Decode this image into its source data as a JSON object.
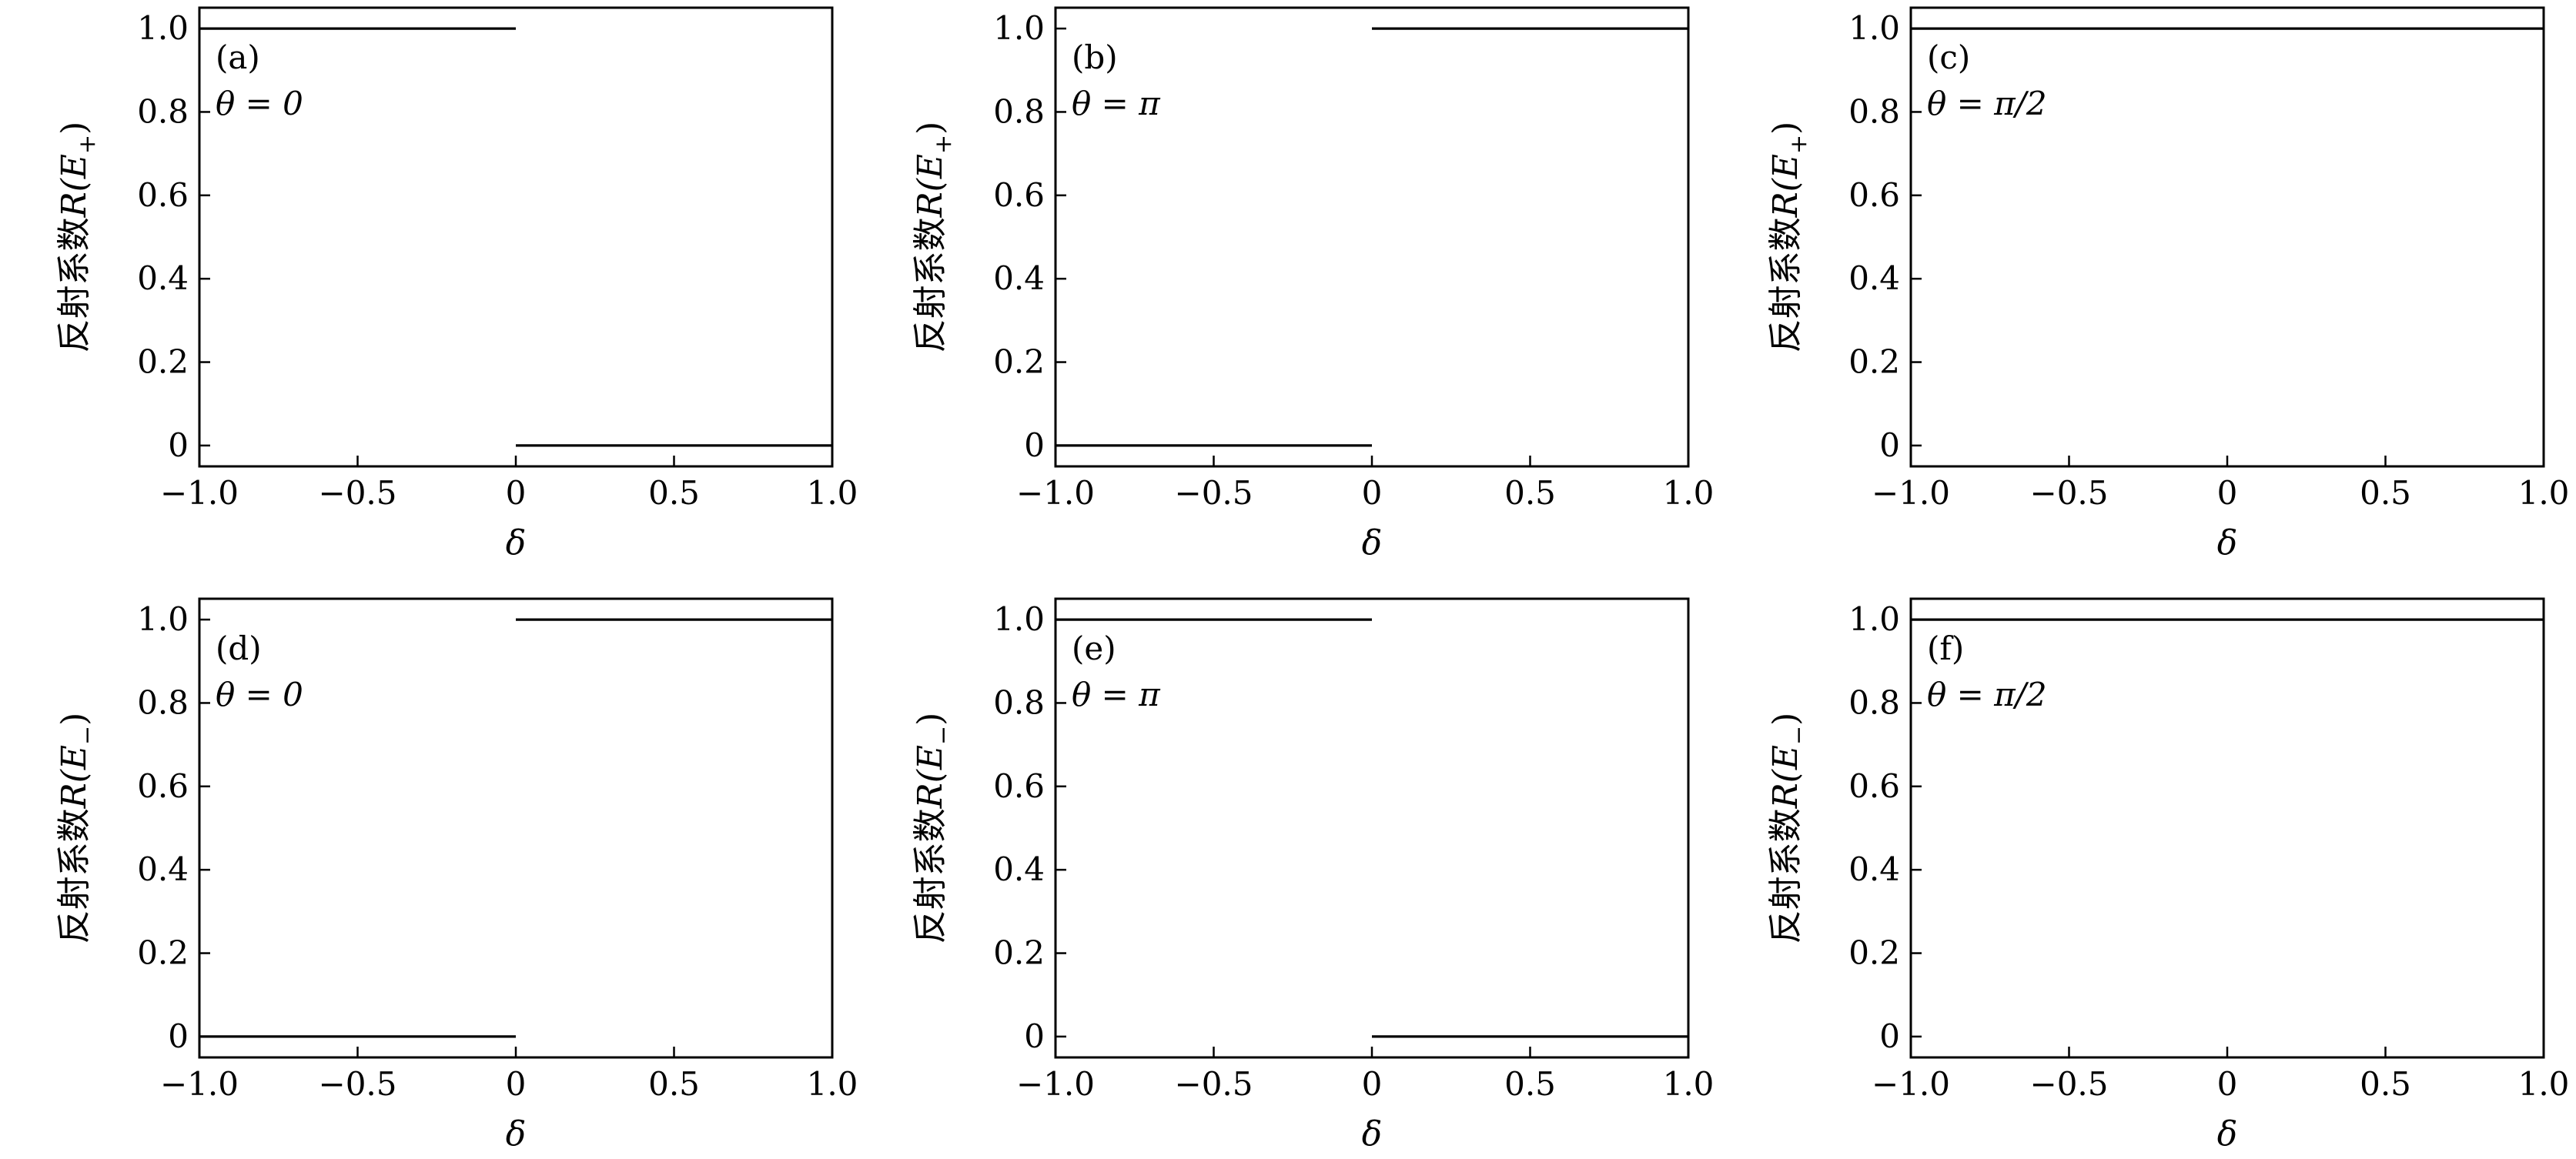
{
  "chart_data": [
    {
      "type": "line",
      "panel_label": "(a)",
      "annotation": "θ = 0",
      "xlabel": "δ",
      "ylabel_prefix": "反射系数",
      "ylabel_math": "R(E",
      "ylabel_sub": "+",
      "ylabel_close": ")",
      "xlim": [
        -1.0,
        1.0
      ],
      "ylim": [
        -0.05,
        1.05
      ],
      "x_ticks": [
        -1.0,
        -0.5,
        0,
        0.5,
        1.0
      ],
      "x_tick_labels": [
        "−1.0",
        "−0.5",
        "0",
        "0.5",
        "1.0"
      ],
      "y_ticks": [
        0,
        0.2,
        0.4,
        0.6,
        0.8,
        1.0
      ],
      "y_tick_labels": [
        "0",
        "0.2",
        "0.4",
        "0.6",
        "0.8",
        "1.0"
      ],
      "series": [
        {
          "segments": [
            {
              "x": [
                -1.0,
                0
              ],
              "y": [
                1,
                1
              ]
            },
            {
              "x": [
                0,
                1.0
              ],
              "y": [
                0,
                0
              ]
            }
          ]
        }
      ],
      "grid": false
    },
    {
      "type": "line",
      "panel_label": "(b)",
      "annotation": "θ = π",
      "xlabel": "δ",
      "ylabel_prefix": "反射系数",
      "ylabel_math": "R(E",
      "ylabel_sub": "+",
      "ylabel_close": ")",
      "xlim": [
        -1.0,
        1.0
      ],
      "ylim": [
        -0.05,
        1.05
      ],
      "x_ticks": [
        -1.0,
        -0.5,
        0,
        0.5,
        1.0
      ],
      "x_tick_labels": [
        "−1.0",
        "−0.5",
        "0",
        "0.5",
        "1.0"
      ],
      "y_ticks": [
        0,
        0.2,
        0.4,
        0.6,
        0.8,
        1.0
      ],
      "y_tick_labels": [
        "0",
        "0.2",
        "0.4",
        "0.6",
        "0.8",
        "1.0"
      ],
      "series": [
        {
          "segments": [
            {
              "x": [
                -1.0,
                0
              ],
              "y": [
                0,
                0
              ]
            },
            {
              "x": [
                0,
                1.0
              ],
              "y": [
                1,
                1
              ]
            }
          ]
        }
      ],
      "grid": false
    },
    {
      "type": "line",
      "panel_label": "(c)",
      "annotation": "θ = π/2",
      "xlabel": "δ",
      "ylabel_prefix": "反射系数",
      "ylabel_math": "R(E",
      "ylabel_sub": "+",
      "ylabel_close": ")",
      "xlim": [
        -1.0,
        1.0
      ],
      "ylim": [
        -0.05,
        1.05
      ],
      "x_ticks": [
        -1.0,
        -0.5,
        0,
        0.5,
        1.0
      ],
      "x_tick_labels": [
        "−1.0",
        "−0.5",
        "0",
        "0.5",
        "1.0"
      ],
      "y_ticks": [
        0,
        0.2,
        0.4,
        0.6,
        0.8,
        1.0
      ],
      "y_tick_labels": [
        "0",
        "0.2",
        "0.4",
        "0.6",
        "0.8",
        "1.0"
      ],
      "series": [
        {
          "segments": [
            {
              "x": [
                -1.0,
                1.0
              ],
              "y": [
                1,
                1
              ]
            }
          ]
        }
      ],
      "grid": false
    },
    {
      "type": "line",
      "panel_label": "(d)",
      "annotation": "θ = 0",
      "xlabel": "δ",
      "ylabel_prefix": "反射系数",
      "ylabel_math": "R(E",
      "ylabel_sub": "−",
      "ylabel_close": ")",
      "xlim": [
        -1.0,
        1.0
      ],
      "ylim": [
        -0.05,
        1.05
      ],
      "x_ticks": [
        -1.0,
        -0.5,
        0,
        0.5,
        1.0
      ],
      "x_tick_labels": [
        "−1.0",
        "−0.5",
        "0",
        "0.5",
        "1.0"
      ],
      "y_ticks": [
        0,
        0.2,
        0.4,
        0.6,
        0.8,
        1.0
      ],
      "y_tick_labels": [
        "0",
        "0.2",
        "0.4",
        "0.6",
        "0.8",
        "1.0"
      ],
      "series": [
        {
          "segments": [
            {
              "x": [
                -1.0,
                0
              ],
              "y": [
                0,
                0
              ]
            },
            {
              "x": [
                0,
                1.0
              ],
              "y": [
                1,
                1
              ]
            }
          ]
        }
      ],
      "grid": false
    },
    {
      "type": "line",
      "panel_label": "(e)",
      "annotation": "θ = π",
      "xlabel": "δ",
      "ylabel_prefix": "反射系数",
      "ylabel_math": "R(E",
      "ylabel_sub": "−",
      "ylabel_close": ")",
      "xlim": [
        -1.0,
        1.0
      ],
      "ylim": [
        -0.05,
        1.05
      ],
      "x_ticks": [
        -1.0,
        -0.5,
        0,
        0.5,
        1.0
      ],
      "x_tick_labels": [
        "−1.0",
        "−0.5",
        "0",
        "0.5",
        "1.0"
      ],
      "y_ticks": [
        0,
        0.2,
        0.4,
        0.6,
        0.8,
        1.0
      ],
      "y_tick_labels": [
        "0",
        "0.2",
        "0.4",
        "0.6",
        "0.8",
        "1.0"
      ],
      "series": [
        {
          "segments": [
            {
              "x": [
                -1.0,
                0
              ],
              "y": [
                1,
                1
              ]
            },
            {
              "x": [
                0,
                1.0
              ],
              "y": [
                0,
                0
              ]
            }
          ]
        }
      ],
      "grid": false
    },
    {
      "type": "line",
      "panel_label": "(f)",
      "annotation": "θ = π/2",
      "xlabel": "δ",
      "ylabel_prefix": "反射系数",
      "ylabel_math": "R(E",
      "ylabel_sub": "−",
      "ylabel_close": ")",
      "xlim": [
        -1.0,
        1.0
      ],
      "ylim": [
        -0.05,
        1.05
      ],
      "x_ticks": [
        -1.0,
        -0.5,
        0,
        0.5,
        1.0
      ],
      "x_tick_labels": [
        "−1.0",
        "−0.5",
        "0",
        "0.5",
        "1.0"
      ],
      "y_ticks": [
        0,
        0.2,
        0.4,
        0.6,
        0.8,
        1.0
      ],
      "y_tick_labels": [
        "0",
        "0.2",
        "0.4",
        "0.6",
        "0.8",
        "1.0"
      ],
      "series": [
        {
          "segments": [
            {
              "x": [
                -1.0,
                1.0
              ],
              "y": [
                1,
                1
              ]
            }
          ]
        }
      ],
      "grid": false
    }
  ]
}
